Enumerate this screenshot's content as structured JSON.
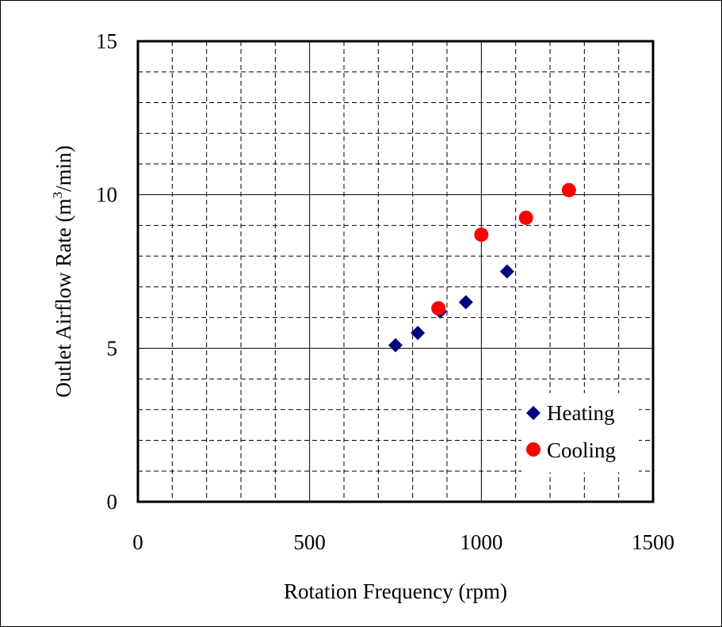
{
  "chart_data": {
    "type": "scatter",
    "title": "",
    "xlabel": "Rotation Frequency (rpm)",
    "ylabel_main": "Outlet Airflow Rate (m",
    "ylabel_sup": "3",
    "ylabel_end": "/min)",
    "xlim": [
      0,
      1500
    ],
    "ylim": [
      0,
      15
    ],
    "xticks": [
      0,
      500,
      1000,
      1500
    ],
    "yticks": [
      0,
      5,
      10,
      15
    ],
    "x_minor_step": 100,
    "y_minor_step": 1,
    "grid": true,
    "legend_position": "bottom-right",
    "series": [
      {
        "name": "Heating",
        "marker": "diamond",
        "color": "#000080",
        "points": [
          [
            750,
            5.1
          ],
          [
            815,
            5.5
          ],
          [
            880,
            6.2
          ],
          [
            955,
            6.5
          ],
          [
            1075,
            7.5
          ]
        ]
      },
      {
        "name": "Cooling",
        "marker": "circle",
        "color": "#ff0000",
        "points": [
          [
            875,
            6.3
          ],
          [
            1000,
            8.7
          ],
          [
            1130,
            9.25
          ],
          [
            1255,
            10.15
          ]
        ]
      }
    ]
  }
}
